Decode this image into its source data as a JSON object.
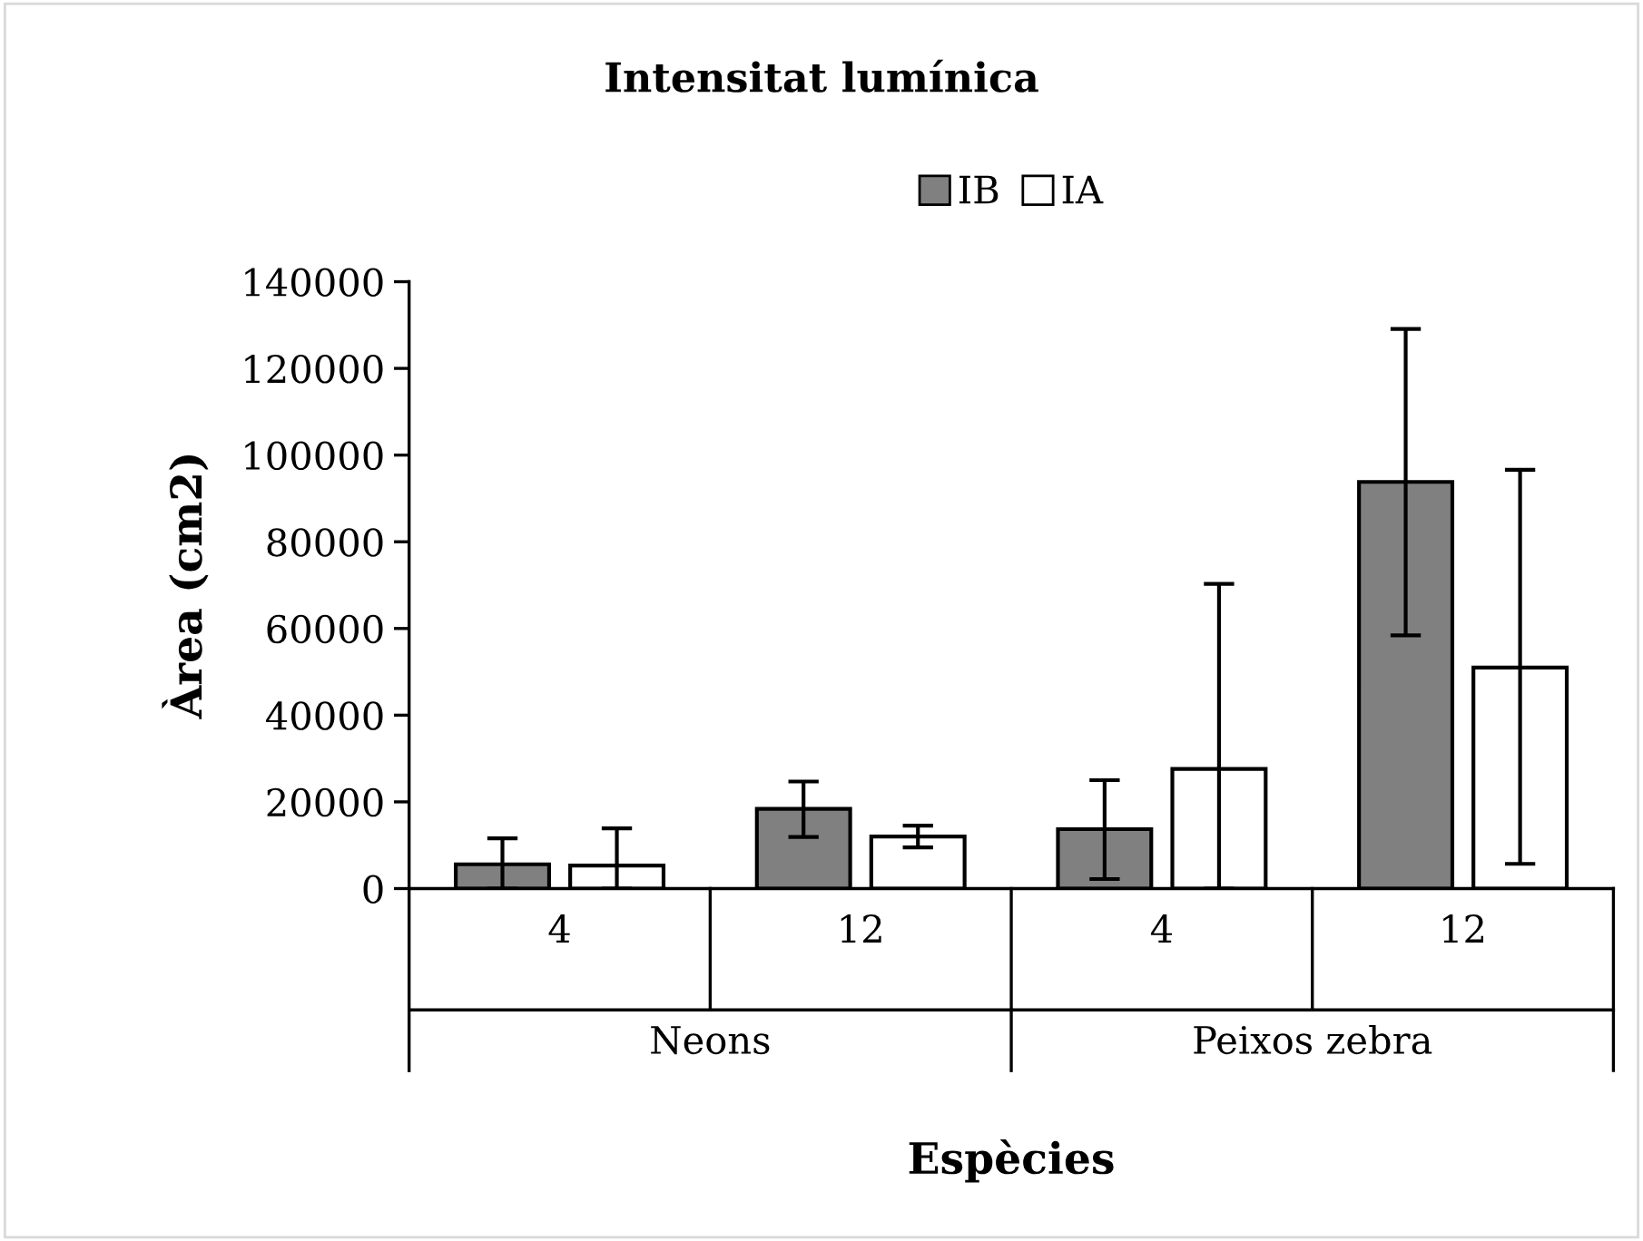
{
  "chart_data": {
    "type": "bar",
    "title": "Intensitat lumínica",
    "xlabel": "Espècies",
    "ylabel": "Àrea (cm2)",
    "categories": [
      "4",
      "12",
      "4",
      "12"
    ],
    "annotations": [
      "Neons",
      "Peixos zebra"
    ],
    "series": [
      {
        "name": "IB",
        "color": "#808080",
        "values": [
          5600,
          18400,
          13700,
          93800
        ],
        "errors": [
          [
            0,
            11600
          ],
          [
            11900,
            24700
          ],
          [
            2200,
            25000
          ],
          [
            58400,
            129100
          ]
        ]
      },
      {
        "name": "IA",
        "color": "#ffffff",
        "values": [
          5300,
          12000,
          27600,
          51000
        ],
        "errors": [
          [
            0,
            13900
          ],
          [
            9500,
            14500
          ],
          [
            0,
            70300
          ],
          [
            5700,
            96600
          ]
        ]
      }
    ],
    "ylim": [
      0,
      140000
    ],
    "yticks": [
      0,
      20000,
      40000,
      60000,
      80000,
      100000,
      120000,
      140000
    ],
    "grid": false,
    "legend": "top"
  }
}
